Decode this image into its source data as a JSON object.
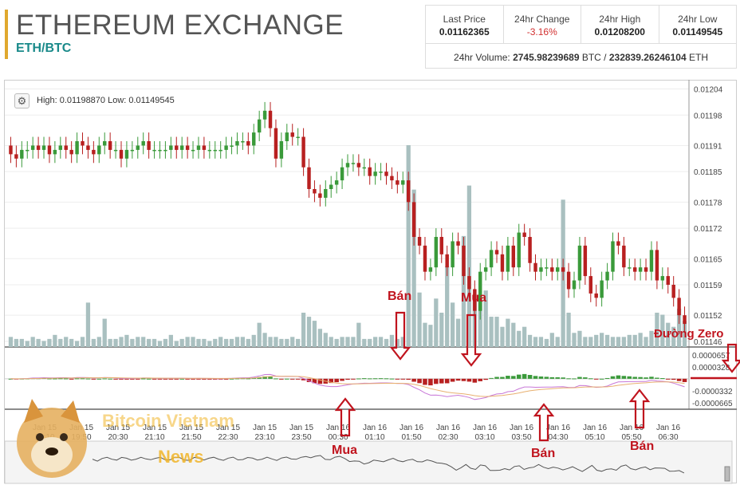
{
  "header": {
    "title": "ETHEREUM EXCHANGE",
    "pair": "ETH/BTC"
  },
  "stats": {
    "last_price_label": "Last Price",
    "last_price": "0.01162365",
    "change_label": "24hr Change",
    "change": "-3.16%",
    "high_label": "24hr High",
    "high": "0.01208200",
    "low_label": "24hr Low",
    "low": "0.01149545",
    "volume_label": "24hr Volume:",
    "volume_btc": "2745.98239689",
    "volume_btc_unit": "BTC /",
    "volume_eth": "232839.26246104",
    "volume_eth_unit": "ETH"
  },
  "chart_info": {
    "high_low_text": "High: 0.01198870  Low: 0.01149545"
  },
  "watermark": {
    "line1": "Bitcoin Vietnam",
    "line2": "News"
  },
  "annotations": [
    {
      "text": "Bán"
    },
    {
      "text": "Mua"
    },
    {
      "text": "Đường Zero"
    },
    {
      "text": "Mua"
    },
    {
      "text": "Bán"
    },
    {
      "text": "Bán"
    }
  ],
  "colors": {
    "up": "#3a9a3a",
    "down": "#b82020",
    "volume": "#a9c0c0",
    "annotation": "#c0141e",
    "accent": "#1a8a8a"
  },
  "chart_data": {
    "type": "candlestick",
    "price_ticks": [
      "0.01204",
      "0.01198",
      "0.01191",
      "0.01185",
      "0.01178",
      "0.01172",
      "0.01165",
      "0.01159",
      "0.01152",
      "0.01146"
    ],
    "price_tick_values": [
      0.01204,
      0.01198,
      0.01191,
      0.01185,
      0.01178,
      0.01172,
      0.01165,
      0.01159,
      0.01152,
      0.01146
    ],
    "macd_ticks": [
      "0.0000657",
      "0.0000328",
      "-0.0000332",
      "-0.0000665"
    ],
    "macd_tick_values": [
      6.57e-05,
      3.28e-05,
      -3.32e-05,
      -6.65e-05
    ],
    "x_labels": [
      "Jan 15 19:10",
      "Jan 15 19:50",
      "Jan 15 20:30",
      "Jan 15 21:10",
      "Jan 15 21:50",
      "Jan 15 22:30",
      "Jan 15 23:10",
      "Jan 15 23:50",
      "Jan 16 00:30",
      "Jan 16 01:10",
      "Jan 16 01:50",
      "Jan 16 02:30",
      "Jan 16 03:10",
      "Jan 16 03:50",
      "Jan 16 04:30",
      "Jan 16 05:10",
      "Jan 16 05:50",
      "Jan 16 06:30"
    ],
    "close": [
      0.01189,
      0.01188,
      0.0119,
      0.0119,
      0.01191,
      0.0119,
      0.01191,
      0.01189,
      0.0119,
      0.01191,
      0.0119,
      0.01189,
      0.01192,
      0.01191,
      0.0119,
      0.01189,
      0.01191,
      0.01192,
      0.0119,
      0.0119,
      0.01188,
      0.0119,
      0.0119,
      0.01191,
      0.01192,
      0.0119,
      0.0119,
      0.0119,
      0.0119,
      0.01191,
      0.0119,
      0.01191,
      0.0119,
      0.0119,
      0.01191,
      0.0119,
      0.0119,
      0.0119,
      0.0119,
      0.01191,
      0.01191,
      0.01192,
      0.01192,
      0.01191,
      0.01194,
      0.01197,
      0.01199,
      0.01195,
      0.01188,
      0.01192,
      0.01194,
      0.01193,
      0.01193,
      0.01186,
      0.01181,
      0.0118,
      0.01179,
      0.01181,
      0.01182,
      0.01183,
      0.01186,
      0.01187,
      0.01187,
      0.01186,
      0.01186,
      0.01184,
      0.01185,
      0.01185,
      0.01184,
      0.01183,
      0.01182,
      0.01183,
      0.01178,
      0.0117,
      0.01168,
      0.01162,
      0.01163,
      0.0117,
      0.01166,
      0.01163,
      0.01169,
      0.01168,
      0.01161,
      0.01158,
      0.01153,
      0.01162,
      0.01163,
      0.01167,
      0.01166,
      0.01162,
      0.01168,
      0.01163,
      0.01171,
      0.0117,
      0.01164,
      0.01162,
      0.01163,
      0.01163,
      0.01162,
      0.01163,
      0.01162,
      0.01158,
      0.0116,
      0.01168,
      0.01161,
      0.01157,
      0.01156,
      0.0116,
      0.01162,
      0.01169,
      0.01168,
      0.01163,
      0.01163,
      0.01162,
      0.01163,
      0.01162,
      0.01167,
      0.0116,
      0.01161,
      0.01159,
      0.01156,
      0.01152,
      0.0115
    ],
    "volume_relative": [
      0.05,
      0.04,
      0.04,
      0.03,
      0.05,
      0.04,
      0.03,
      0.04,
      0.06,
      0.04,
      0.05,
      0.04,
      0.03,
      0.05,
      0.22,
      0.04,
      0.05,
      0.14,
      0.04,
      0.04,
      0.05,
      0.06,
      0.04,
      0.05,
      0.05,
      0.04,
      0.04,
      0.03,
      0.04,
      0.06,
      0.03,
      0.04,
      0.05,
      0.05,
      0.04,
      0.04,
      0.03,
      0.04,
      0.05,
      0.04,
      0.04,
      0.05,
      0.05,
      0.04,
      0.06,
      0.12,
      0.07,
      0.05,
      0.05,
      0.04,
      0.04,
      0.05,
      0.04,
      0.17,
      0.15,
      0.13,
      0.09,
      0.07,
      0.05,
      0.04,
      0.05,
      0.05,
      0.05,
      0.12,
      0.04,
      0.04,
      0.05,
      0.05,
      0.04,
      0.06,
      0.04,
      0.05,
      1.0,
      0.78,
      0.27,
      0.12,
      0.11,
      0.24,
      0.17,
      0.4,
      0.22,
      0.14,
      0.55,
      0.8,
      0.23,
      0.24,
      0.28,
      0.15,
      0.15,
      0.1,
      0.14,
      0.12,
      0.08,
      0.1,
      0.06,
      0.05,
      0.05,
      0.04,
      0.07,
      0.05,
      0.73,
      0.17,
      0.07,
      0.08,
      0.05,
      0.05,
      0.06,
      0.07,
      0.06,
      0.05,
      0.05,
      0.05,
      0.06,
      0.06,
      0.07,
      0.05,
      0.08,
      0.17,
      0.16,
      0.12,
      0.1,
      0.19,
      0.13
    ]
  }
}
